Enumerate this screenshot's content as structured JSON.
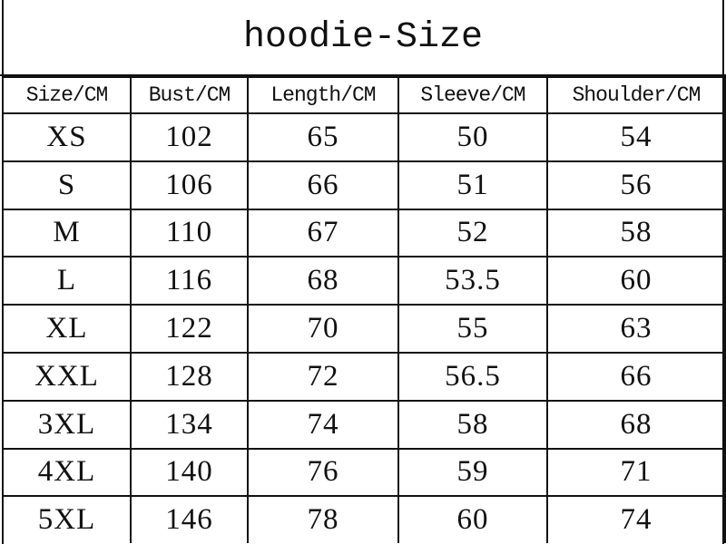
{
  "title": "hoodie-Size",
  "headers": [
    "Size/CM",
    "Bust/CM",
    "Length/CM",
    "Sleeve/CM",
    "Shoulder/CM"
  ],
  "rows": [
    [
      "XS",
      "102",
      "65",
      "50",
      "54"
    ],
    [
      "S",
      "106",
      "66",
      "51",
      "56"
    ],
    [
      "M",
      "110",
      "67",
      "52",
      "58"
    ],
    [
      "L",
      "116",
      "68",
      "53.5",
      "60"
    ],
    [
      "XL",
      "122",
      "70",
      "55",
      "63"
    ],
    [
      "XXL",
      "128",
      "72",
      "56.5",
      "66"
    ],
    [
      "3XL",
      "134",
      "74",
      "58",
      "68"
    ],
    [
      "4XL",
      "140",
      "76",
      "59",
      "71"
    ],
    [
      "5XL",
      "146",
      "78",
      "60",
      "74"
    ]
  ]
}
